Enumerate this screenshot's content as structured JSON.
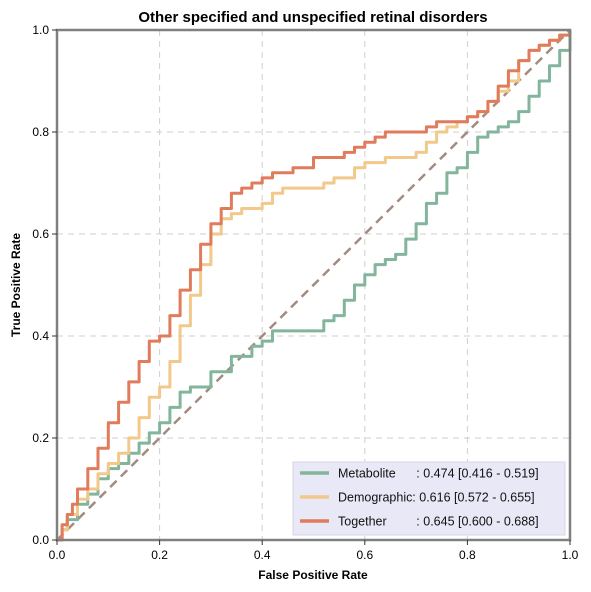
{
  "chart_data": {
    "type": "line",
    "title": "Other specified and unspecified retinal disorders",
    "xlabel": "False Positive Rate",
    "ylabel": "True Positive Rate",
    "xlim": [
      0,
      1
    ],
    "ylim": [
      0,
      1
    ],
    "xticks": [
      "0.0",
      "0.2",
      "0.4",
      "0.6",
      "0.8",
      "1.0"
    ],
    "yticks": [
      "0.0",
      "0.2",
      "0.4",
      "0.6",
      "0.8",
      "1.0"
    ],
    "grid": true,
    "legend_position": "bottom-right",
    "chance_line": {
      "x": [
        0,
        1
      ],
      "y": [
        0,
        1
      ],
      "color": "#a48b80"
    },
    "series": [
      {
        "name": "Metabolite",
        "label": ": 0.474 [0.416 - 0.519]",
        "color": "#82b59b",
        "x": [
          0,
          0.01,
          0.02,
          0.04,
          0.06,
          0.08,
          0.1,
          0.12,
          0.14,
          0.16,
          0.18,
          0.2,
          0.22,
          0.24,
          0.26,
          0.3,
          0.34,
          0.38,
          0.4,
          0.42,
          0.44,
          0.46,
          0.5,
          0.52,
          0.54,
          0.56,
          0.58,
          0.6,
          0.62,
          0.64,
          0.66,
          0.68,
          0.7,
          0.72,
          0.74,
          0.76,
          0.78,
          0.8,
          0.82,
          0.84,
          0.86,
          0.88,
          0.9,
          0.92,
          0.94,
          0.96,
          0.98,
          1.0
        ],
        "y": [
          0,
          0.02,
          0.04,
          0.07,
          0.09,
          0.12,
          0.14,
          0.15,
          0.17,
          0.19,
          0.21,
          0.23,
          0.26,
          0.29,
          0.3,
          0.33,
          0.36,
          0.38,
          0.39,
          0.41,
          0.41,
          0.41,
          0.41,
          0.43,
          0.44,
          0.47,
          0.5,
          0.52,
          0.54,
          0.55,
          0.56,
          0.59,
          0.62,
          0.66,
          0.68,
          0.72,
          0.73,
          0.76,
          0.79,
          0.8,
          0.81,
          0.82,
          0.84,
          0.87,
          0.9,
          0.93,
          0.96,
          1.0
        ]
      },
      {
        "name": "Demographic",
        "label": ": 0.616 [0.572 - 0.655]",
        "color": "#f2c98a",
        "x": [
          0,
          0.01,
          0.02,
          0.04,
          0.06,
          0.08,
          0.1,
          0.12,
          0.14,
          0.16,
          0.18,
          0.2,
          0.22,
          0.24,
          0.26,
          0.28,
          0.3,
          0.32,
          0.34,
          0.36,
          0.38,
          0.4,
          0.42,
          0.44,
          0.46,
          0.5,
          0.52,
          0.54,
          0.56,
          0.58,
          0.6,
          0.62,
          0.64,
          0.66,
          0.68,
          0.7,
          0.72,
          0.74,
          0.76,
          0.78,
          0.8,
          0.82,
          0.84,
          0.86,
          0.88,
          0.9,
          0.92,
          0.94,
          0.96,
          0.98,
          1.0
        ],
        "y": [
          0,
          0.02,
          0.05,
          0.08,
          0.1,
          0.13,
          0.15,
          0.17,
          0.2,
          0.24,
          0.28,
          0.3,
          0.35,
          0.42,
          0.48,
          0.54,
          0.6,
          0.63,
          0.64,
          0.65,
          0.65,
          0.66,
          0.68,
          0.69,
          0.69,
          0.69,
          0.7,
          0.71,
          0.71,
          0.73,
          0.74,
          0.74,
          0.75,
          0.75,
          0.75,
          0.76,
          0.78,
          0.8,
          0.81,
          0.82,
          0.83,
          0.84,
          0.86,
          0.88,
          0.9,
          0.94,
          0.96,
          0.97,
          0.98,
          0.99,
          1.0
        ]
      },
      {
        "name": "Together",
        "label": ": 0.645 [0.600 - 0.688]",
        "color": "#e07b5b",
        "x": [
          0,
          0.01,
          0.02,
          0.03,
          0.04,
          0.06,
          0.08,
          0.1,
          0.12,
          0.14,
          0.16,
          0.18,
          0.2,
          0.22,
          0.24,
          0.26,
          0.28,
          0.3,
          0.32,
          0.34,
          0.36,
          0.38,
          0.4,
          0.42,
          0.44,
          0.46,
          0.5,
          0.52,
          0.54,
          0.56,
          0.58,
          0.6,
          0.62,
          0.64,
          0.66,
          0.68,
          0.7,
          0.72,
          0.74,
          0.76,
          0.78,
          0.8,
          0.82,
          0.84,
          0.86,
          0.88,
          0.9,
          0.92,
          0.94,
          0.96,
          0.98,
          1.0
        ],
        "y": [
          0,
          0.03,
          0.05,
          0.07,
          0.1,
          0.14,
          0.18,
          0.23,
          0.27,
          0.31,
          0.35,
          0.39,
          0.4,
          0.44,
          0.49,
          0.53,
          0.58,
          0.62,
          0.65,
          0.68,
          0.69,
          0.7,
          0.71,
          0.72,
          0.72,
          0.73,
          0.75,
          0.75,
          0.75,
          0.76,
          0.77,
          0.78,
          0.79,
          0.8,
          0.8,
          0.8,
          0.8,
          0.81,
          0.82,
          0.82,
          0.82,
          0.83,
          0.84,
          0.86,
          0.89,
          0.92,
          0.94,
          0.96,
          0.97,
          0.98,
          0.99,
          1.0
        ]
      }
    ]
  }
}
